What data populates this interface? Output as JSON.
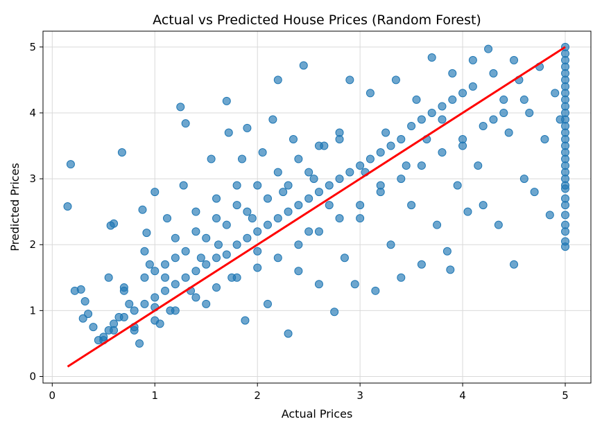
{
  "chart_data": {
    "type": "scatter",
    "title": "Actual vs Predicted House Prices (Random Forest)",
    "xlabel": "Actual Prices",
    "ylabel": "Predicted Prices",
    "xlim": [
      -0.09,
      5.25
    ],
    "ylim": [
      -0.1,
      5.24
    ],
    "xticks": [
      "0",
      "1",
      "2",
      "3",
      "4",
      "5"
    ],
    "yticks": [
      "0",
      "1",
      "2",
      "3",
      "4",
      "5"
    ],
    "grid": true,
    "point_color": "#1f77b4",
    "line_color": "#ff0000",
    "reference_line": {
      "x": [
        0.15,
        5.0
      ],
      "y": [
        0.15,
        5.0
      ]
    },
    "points": [
      [
        0.15,
        2.58
      ],
      [
        0.18,
        3.22
      ],
      [
        0.22,
        1.3
      ],
      [
        0.28,
        1.32
      ],
      [
        0.32,
        1.14
      ],
      [
        0.3,
        0.88
      ],
      [
        0.35,
        0.95
      ],
      [
        0.4,
        0.75
      ],
      [
        0.45,
        0.55
      ],
      [
        0.5,
        0.6
      ],
      [
        0.55,
        0.7
      ],
      [
        0.6,
        0.8
      ],
      [
        0.65,
        0.9
      ],
      [
        0.55,
        1.5
      ],
      [
        0.57,
        2.29
      ],
      [
        0.6,
        2.32
      ],
      [
        0.68,
        3.4
      ],
      [
        0.7,
        1.35
      ],
      [
        0.75,
        1.1
      ],
      [
        0.8,
        0.7
      ],
      [
        0.85,
        0.5
      ],
      [
        0.9,
        1.9
      ],
      [
        0.88,
        2.53
      ],
      [
        0.92,
        2.18
      ],
      [
        0.95,
        1.7
      ],
      [
        1.0,
        1.2
      ],
      [
        1.0,
        2.8
      ],
      [
        1.05,
        0.8
      ],
      [
        1.1,
        1.5
      ],
      [
        1.12,
        2.4
      ],
      [
        1.15,
        1.0
      ],
      [
        1.2,
        2.1
      ],
      [
        1.25,
        4.09
      ],
      [
        1.3,
        3.84
      ],
      [
        1.28,
        2.9
      ],
      [
        1.35,
        1.3
      ],
      [
        1.4,
        2.5
      ],
      [
        1.45,
        1.8
      ],
      [
        1.5,
        1.1
      ],
      [
        1.55,
        3.3
      ],
      [
        1.6,
        2.7
      ],
      [
        1.62,
        2.0
      ],
      [
        1.7,
        4.18
      ],
      [
        1.72,
        3.7
      ],
      [
        1.75,
        1.5
      ],
      [
        1.8,
        2.9
      ],
      [
        1.85,
        3.3
      ],
      [
        1.88,
        0.85
      ],
      [
        1.9,
        3.77
      ],
      [
        1.95,
        2.4
      ],
      [
        2.0,
        1.9
      ],
      [
        2.05,
        3.4
      ],
      [
        2.1,
        1.1
      ],
      [
        2.15,
        3.9
      ],
      [
        2.2,
        4.5
      ],
      [
        2.25,
        2.8
      ],
      [
        2.3,
        0.65
      ],
      [
        2.35,
        3.6
      ],
      [
        2.4,
        1.6
      ],
      [
        2.45,
        4.72
      ],
      [
        2.5,
        2.2
      ],
      [
        2.55,
        3.0
      ],
      [
        2.6,
        1.4
      ],
      [
        2.65,
        3.5
      ],
      [
        2.7,
        2.6
      ],
      [
        2.75,
        0.98
      ],
      [
        2.8,
        3.7
      ],
      [
        2.85,
        1.8
      ],
      [
        2.9,
        4.5
      ],
      [
        2.95,
        1.4
      ],
      [
        3.0,
        2.4
      ],
      [
        3.05,
        3.1
      ],
      [
        3.1,
        4.3
      ],
      [
        3.15,
        1.3
      ],
      [
        3.2,
        2.9
      ],
      [
        3.25,
        3.7
      ],
      [
        3.3,
        2.0
      ],
      [
        3.35,
        4.5
      ],
      [
        3.4,
        1.5
      ],
      [
        3.45,
        3.2
      ],
      [
        3.5,
        2.6
      ],
      [
        3.55,
        4.2
      ],
      [
        3.6,
        1.7
      ],
      [
        3.65,
        3.6
      ],
      [
        3.7,
        4.84
      ],
      [
        3.75,
        2.3
      ],
      [
        3.8,
        3.9
      ],
      [
        3.85,
        1.9
      ],
      [
        3.88,
        1.62
      ],
      [
        3.9,
        4.6
      ],
      [
        3.95,
        2.9
      ],
      [
        4.0,
        3.5
      ],
      [
        4.05,
        2.5
      ],
      [
        4.1,
        4.8
      ],
      [
        4.15,
        3.2
      ],
      [
        4.2,
        2.6
      ],
      [
        4.25,
        4.97
      ],
      [
        4.3,
        3.9
      ],
      [
        4.35,
        2.3
      ],
      [
        4.4,
        4.2
      ],
      [
        4.45,
        3.7
      ],
      [
        4.5,
        1.7
      ],
      [
        4.55,
        4.5
      ],
      [
        4.6,
        3.0
      ],
      [
        4.65,
        4.0
      ],
      [
        4.7,
        2.8
      ],
      [
        4.75,
        4.7
      ],
      [
        4.8,
        3.6
      ],
      [
        4.85,
        2.45
      ],
      [
        4.9,
        4.3
      ],
      [
        4.95,
        3.9
      ],
      [
        0.5,
        0.55
      ],
      [
        0.6,
        0.7
      ],
      [
        0.7,
        0.9
      ],
      [
        0.8,
        1.0
      ],
      [
        0.9,
        1.1
      ],
      [
        1.0,
        1.05
      ],
      [
        1.1,
        1.3
      ],
      [
        1.2,
        1.4
      ],
      [
        1.3,
        1.5
      ],
      [
        1.4,
        1.6
      ],
      [
        1.5,
        1.7
      ],
      [
        1.6,
        1.8
      ],
      [
        1.7,
        1.85
      ],
      [
        1.8,
        2.0
      ],
      [
        1.9,
        2.1
      ],
      [
        2.0,
        2.2
      ],
      [
        2.1,
        2.3
      ],
      [
        2.2,
        2.4
      ],
      [
        2.3,
        2.5
      ],
      [
        2.4,
        2.6
      ],
      [
        2.5,
        2.7
      ],
      [
        2.6,
        2.8
      ],
      [
        2.7,
        2.9
      ],
      [
        2.8,
        3.0
      ],
      [
        2.9,
        3.1
      ],
      [
        3.0,
        3.2
      ],
      [
        3.1,
        3.3
      ],
      [
        3.2,
        3.4
      ],
      [
        3.3,
        3.5
      ],
      [
        0.7,
        1.3
      ],
      [
        0.9,
        1.5
      ],
      [
        1.1,
        1.7
      ],
      [
        1.3,
        1.9
      ],
      [
        1.5,
        2.1
      ],
      [
        1.7,
        2.3
      ],
      [
        1.9,
        2.5
      ],
      [
        2.1,
        2.7
      ],
      [
        2.3,
        2.9
      ],
      [
        2.5,
        3.1
      ],
      [
        0.8,
        0.75
      ],
      [
        1.0,
        0.85
      ],
      [
        1.2,
        1.0
      ],
      [
        1.4,
        1.2
      ],
      [
        1.6,
        1.35
      ],
      [
        1.8,
        1.5
      ],
      [
        2.0,
        1.65
      ],
      [
        2.2,
        1.8
      ],
      [
        2.4,
        2.0
      ],
      [
        2.6,
        2.2
      ],
      [
        2.8,
        2.4
      ],
      [
        3.0,
        2.6
      ],
      [
        3.2,
        2.8
      ],
      [
        3.4,
        3.0
      ],
      [
        3.6,
        3.2
      ],
      [
        3.8,
        3.4
      ],
      [
        4.0,
        3.6
      ],
      [
        4.2,
        3.8
      ],
      [
        4.4,
        4.0
      ],
      [
        4.6,
        4.2
      ],
      [
        3.5,
        3.8
      ],
      [
        3.7,
        4.0
      ],
      [
        3.9,
        4.2
      ],
      [
        4.1,
        4.4
      ],
      [
        4.3,
        4.6
      ],
      [
        4.5,
        4.8
      ],
      [
        3.4,
        3.6
      ],
      [
        3.6,
        3.9
      ],
      [
        3.8,
        4.1
      ],
      [
        4.0,
        4.3
      ],
      [
        1.0,
        1.6
      ],
      [
        1.2,
        1.8
      ],
      [
        1.4,
        2.2
      ],
      [
        1.6,
        2.4
      ],
      [
        1.8,
        2.6
      ],
      [
        2.0,
        2.9
      ],
      [
        2.2,
        3.1
      ],
      [
        2.4,
        3.3
      ],
      [
        2.6,
        3.5
      ],
      [
        2.8,
        3.6
      ],
      [
        5.0,
        5.0
      ],
      [
        5.0,
        4.9
      ],
      [
        5.0,
        4.8
      ],
      [
        5.0,
        4.7
      ],
      [
        5.0,
        4.6
      ],
      [
        5.0,
        4.5
      ],
      [
        5.0,
        4.4
      ],
      [
        5.0,
        4.3
      ],
      [
        5.0,
        4.2
      ],
      [
        5.0,
        4.1
      ],
      [
        5.0,
        4.0
      ],
      [
        5.0,
        3.9
      ],
      [
        5.0,
        3.8
      ],
      [
        5.0,
        3.7
      ],
      [
        5.0,
        3.6
      ],
      [
        5.0,
        3.5
      ],
      [
        5.0,
        3.4
      ],
      [
        5.0,
        3.3
      ],
      [
        5.0,
        3.2
      ],
      [
        5.0,
        3.1
      ],
      [
        5.0,
        3.0
      ],
      [
        5.0,
        2.9
      ],
      [
        5.0,
        2.85
      ],
      [
        5.0,
        2.7
      ],
      [
        5.0,
        2.6
      ],
      [
        5.0,
        2.45
      ],
      [
        5.0,
        2.3
      ],
      [
        5.0,
        2.2
      ],
      [
        5.0,
        2.05
      ],
      [
        5.0,
        1.97
      ]
    ]
  }
}
